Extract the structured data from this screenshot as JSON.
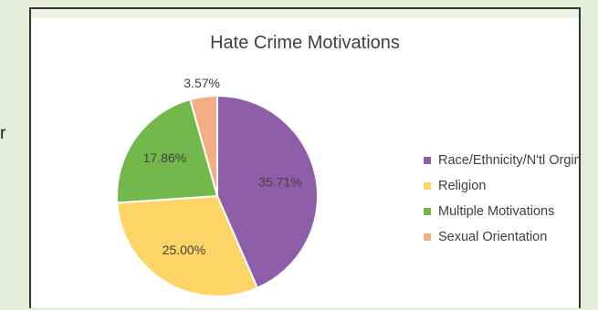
{
  "page": {
    "left_fragment": "r"
  },
  "chart_data": {
    "type": "pie",
    "title": "Hate Crime Motivations",
    "labels": [
      "Race/Ethnicity/N'tl Orgin",
      "Religion",
      "Multiple Motivations",
      "Sexual Orientation"
    ],
    "values": [
      35.71,
      25.0,
      17.86,
      3.57
    ],
    "data_labels": [
      "35.71%",
      "25.00%",
      "17.86%",
      "3.57%"
    ],
    "colors": [
      "#8e5ea8",
      "#fdd566",
      "#72b84a",
      "#f4ae84"
    ],
    "legend_position": "right"
  }
}
